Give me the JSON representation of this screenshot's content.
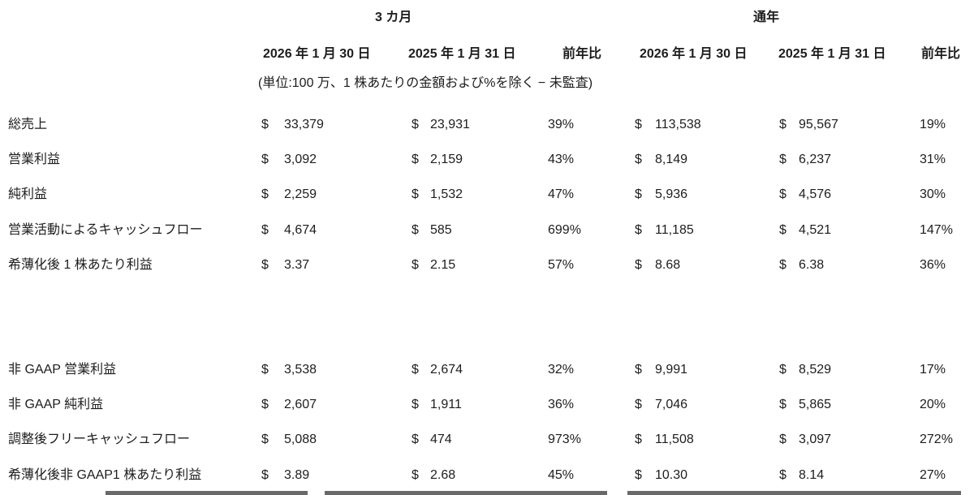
{
  "table": {
    "group_headers": {
      "three_months": "3 カ月",
      "full_year": "通年"
    },
    "column_headers": {
      "q_2026": "2026 年 1 月 30 日",
      "q_2025": "2025 年 1 月 31 日",
      "q_yoy": "前年比",
      "fy_2026": "2026 年 1 月 30 日",
      "fy_2025": "2025 年 1 月 31 日",
      "fy_yoy": "前年比"
    },
    "note": "(単位:100 万、1 株あたりの金額および%を除く − 未監査)",
    "currency_symbol": "$",
    "sections": [
      {
        "name": "gaap",
        "rows": [
          {
            "label": "総売上",
            "q_2026": "33,379",
            "q_2025": "23,931",
            "q_yoy": "39%",
            "fy_2026": "113,538",
            "fy_2025": "95,567",
            "fy_yoy": "19%"
          },
          {
            "label": "営業利益",
            "q_2026": "3,092",
            "q_2025": "2,159",
            "q_yoy": "43%",
            "fy_2026": "8,149",
            "fy_2025": "6,237",
            "fy_yoy": "31%"
          },
          {
            "label": "純利益",
            "q_2026": "2,259",
            "q_2025": "1,532",
            "q_yoy": "47%",
            "fy_2026": "5,936",
            "fy_2025": "4,576",
            "fy_yoy": "30%"
          },
          {
            "label": "営業活動によるキャッシュフロー",
            "q_2026": "4,674",
            "q_2025": "585",
            "q_yoy": "699%",
            "fy_2026": "11,185",
            "fy_2025": "4,521",
            "fy_yoy": "147%"
          },
          {
            "label": "希薄化後 1 株あたり利益",
            "q_2026": "3.37",
            "q_2025": "2.15",
            "q_yoy": "57%",
            "fy_2026": "8.68",
            "fy_2025": "6.38",
            "fy_yoy": "36%"
          }
        ]
      },
      {
        "name": "non_gaap",
        "rows": [
          {
            "label": "非 GAAP 営業利益",
            "q_2026": "3,538",
            "q_2025": "2,674",
            "q_yoy": "32%",
            "fy_2026": "9,991",
            "fy_2025": "8,529",
            "fy_yoy": "17%"
          },
          {
            "label": "非 GAAP 純利益",
            "q_2026": "2,607",
            "q_2025": "1,911",
            "q_yoy": "36%",
            "fy_2026": "7,046",
            "fy_2025": "5,865",
            "fy_yoy": "20%"
          },
          {
            "label": "調整後フリーキャッシュフロー",
            "q_2026": "5,088",
            "q_2025": "474",
            "q_yoy": "973%",
            "fy_2026": "11,508",
            "fy_2025": "3,097",
            "fy_yoy": "272%"
          },
          {
            "label": "希薄化後非 GAAP1 株あたり利益",
            "q_2026": "3.89",
            "q_2025": "2.68",
            "q_yoy": "45%",
            "fy_2026": "10.30",
            "fy_2025": "8.14",
            "fy_yoy": "27%"
          }
        ]
      }
    ]
  },
  "colors": {
    "text": "#1d1d1d",
    "background": "#ffffff",
    "cutoff_bar": "#3f3f3f"
  }
}
